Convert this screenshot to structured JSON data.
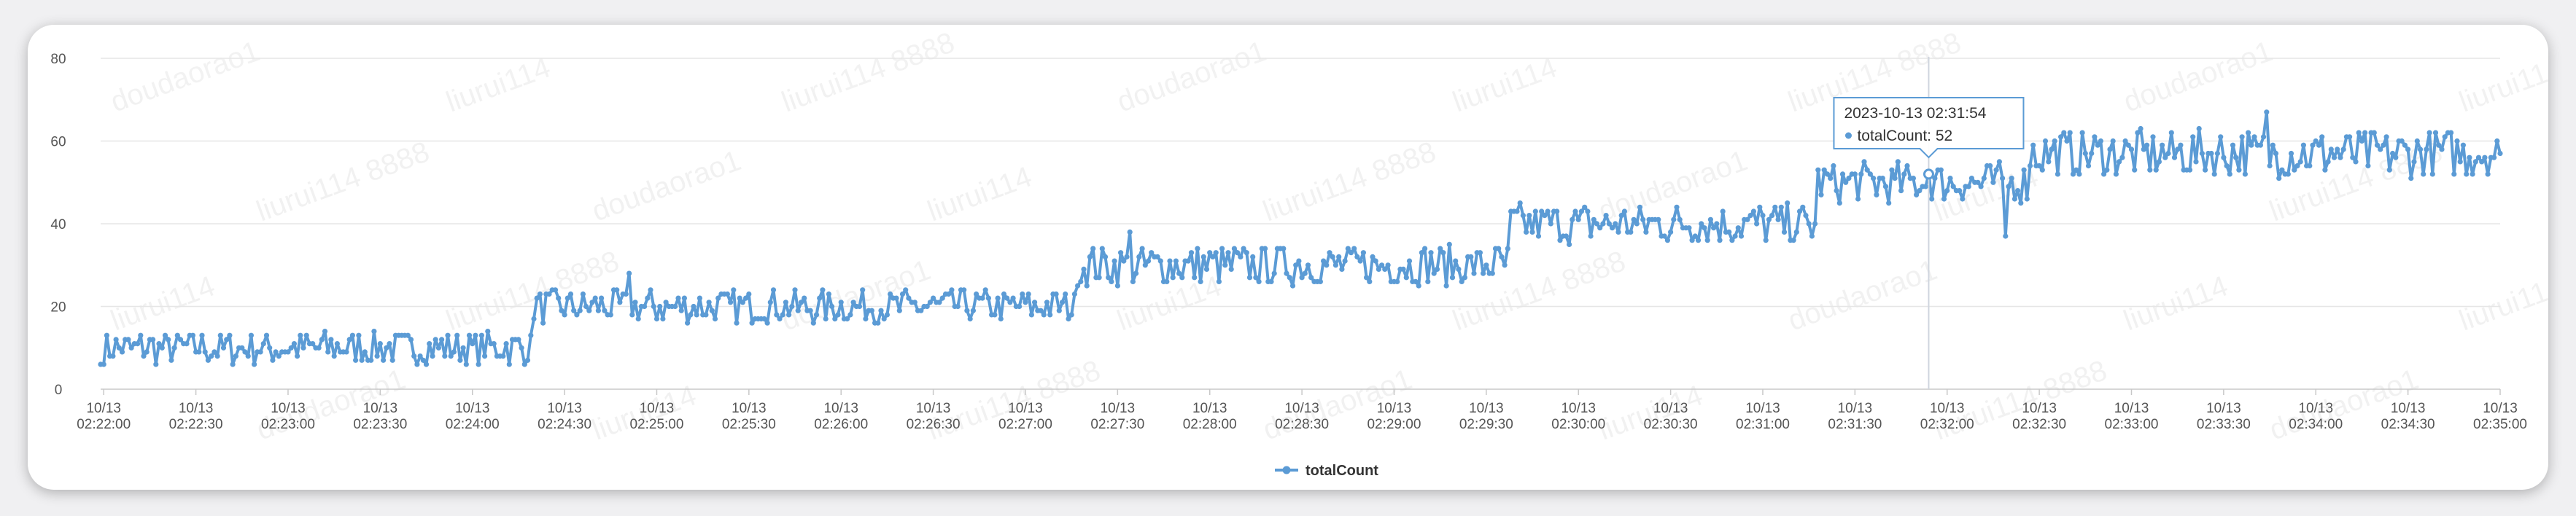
{
  "chart_data": {
    "type": "line",
    "title": "",
    "xlabel": "",
    "ylabel": "",
    "ylim": [
      0,
      80
    ],
    "y_ticks": [
      0,
      20,
      40,
      60,
      80
    ],
    "x_ticks": [
      "10/13 02:22:00",
      "10/13 02:22:30",
      "10/13 02:23:00",
      "10/13 02:23:30",
      "10/13 02:24:00",
      "10/13 02:24:30",
      "10/13 02:25:00",
      "10/13 02:25:30",
      "10/13 02:26:00",
      "10/13 02:26:30",
      "10/13 02:27:00",
      "10/13 02:27:30",
      "10/13 02:28:00",
      "10/13 02:28:30",
      "10/13 02:29:00",
      "10/13 02:29:30",
      "10/13 02:30:00",
      "10/13 02:30:30",
      "10/13 02:31:00",
      "10/13 02:31:30",
      "10/13 02:32:00",
      "10/13 02:32:30",
      "10/13 02:33:00",
      "10/13 02:33:30",
      "10/13 02:34:00",
      "10/13 02:34:30",
      "10/13 02:35:00"
    ],
    "x_range": [
      "2023-10-13 02:21:59",
      "2023-10-13 02:35:00"
    ],
    "grid": true,
    "legend_position": "bottom-center",
    "series": [
      {
        "name": "totalCount",
        "color": "#5b9bd5",
        "segments": [
          {
            "start": "02:21:59",
            "end": "02:24:20",
            "level": 10,
            "spread": 5
          },
          {
            "start": "02:24:20",
            "end": "02:27:17",
            "level": 20,
            "spread": 5
          },
          {
            "start": "02:27:17",
            "end": "02:29:38",
            "level": 30,
            "spread": 6
          },
          {
            "start": "02:29:38",
            "end": "02:31:18",
            "level": 40,
            "spread": 6
          },
          {
            "start": "02:31:18",
            "end": "02:32:27",
            "level": 50,
            "spread": 6
          },
          {
            "start": "02:32:27",
            "end": "02:35:00",
            "level": 57,
            "spread": 7
          }
        ],
        "notable_points": [
          {
            "x": "02:22:00",
            "y": 6
          },
          {
            "x": "02:24:51",
            "y": 28
          },
          {
            "x": "02:27:34",
            "y": 38
          },
          {
            "x": "02:31:54",
            "y": 52
          },
          {
            "x": "02:32:19",
            "y": 37
          },
          {
            "x": "02:33:44",
            "y": 67
          }
        ]
      }
    ],
    "tooltip": {
      "title": "2023-10-13 02:31:54",
      "series_name": "totalCount",
      "value": "52",
      "x": "02:31:54"
    },
    "watermarks": [
      "doudaorao1",
      "liurui114",
      "liurui114 8888"
    ]
  },
  "legend": {
    "label": "totalCount"
  }
}
